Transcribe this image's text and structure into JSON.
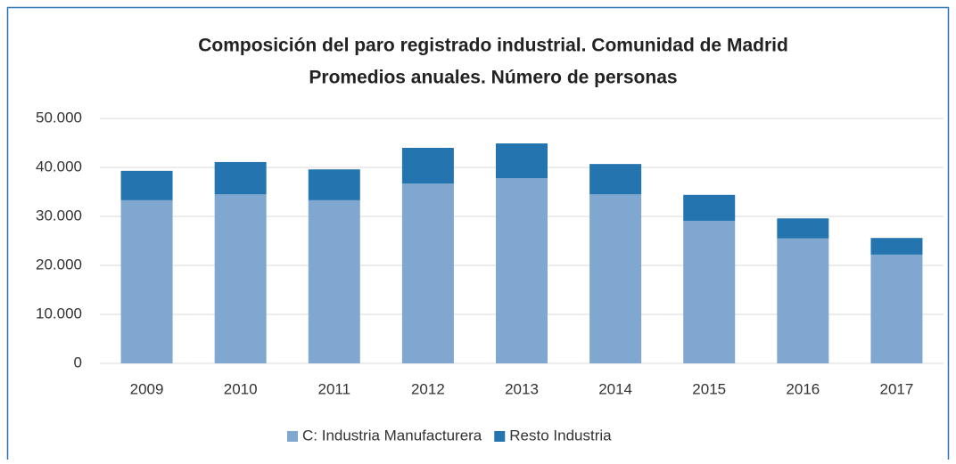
{
  "chart_data": {
    "type": "bar",
    "stacked": true,
    "title": "Composición del paro registrado industrial. Comunidad de Madrid",
    "subtitle": "Promedios anuales. Número de personas",
    "categories": [
      "2009",
      "2010",
      "2011",
      "2012",
      "2013",
      "2014",
      "2015",
      "2016",
      "2017"
    ],
    "series": [
      {
        "name": "C: Industria Manufacturera",
        "color": "#7fa7cf",
        "values": [
          33300,
          34500,
          33300,
          36700,
          37800,
          34500,
          29100,
          25500,
          22200
        ]
      },
      {
        "name": "Resto Industria",
        "color": "#2474b0",
        "values": [
          6000,
          6600,
          6300,
          7300,
          7100,
          6200,
          5300,
          4100,
          3400
        ]
      }
    ],
    "ylim": [
      0,
      50000
    ],
    "yticks": [
      0,
      {
        "value": 10000,
        "label": "10.000"
      },
      {
        "value": 20000,
        "label": "20.000"
      },
      {
        "value": 30000,
        "label": "30.000"
      },
      {
        "value": 40000,
        "label": "40.000"
      },
      {
        "value": 50000,
        "label": "50.000"
      }
    ],
    "grid": true,
    "legend": "bottom"
  }
}
